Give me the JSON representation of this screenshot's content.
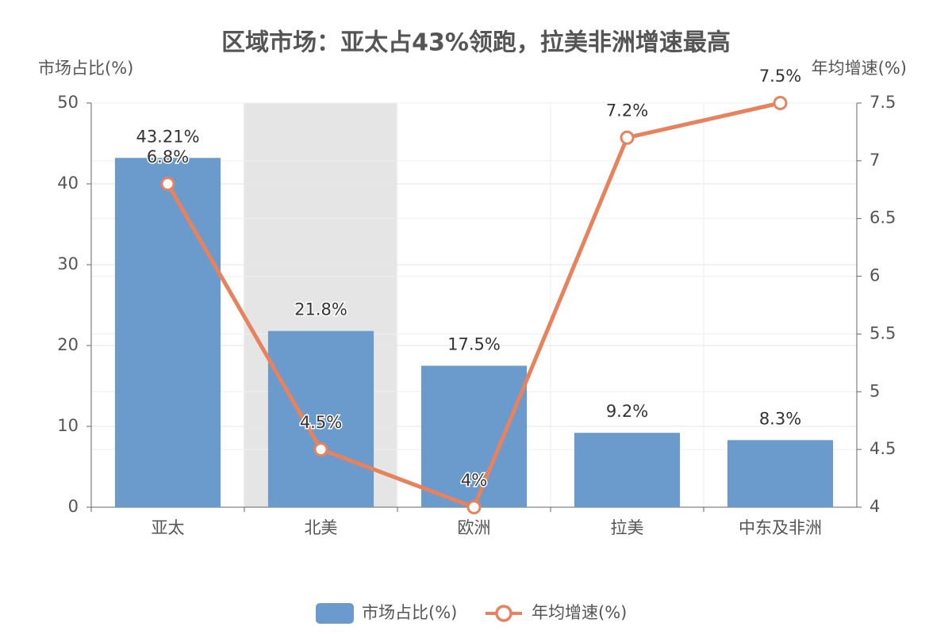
{
  "chart_data": {
    "type": "bar",
    "title": "区域市场：亚太占43%领跑，拉美非洲增速最高",
    "y_axis_label": "市场占比(%)",
    "y2_axis_label": "年均增速(%)",
    "categories": [
      "亚太",
      "北美",
      "欧洲",
      "拉美",
      "中东及非洲"
    ],
    "series": [
      {
        "name": "市场占比(%)",
        "type": "bar",
        "color": "#6b9bcc",
        "values": [
          43.21,
          21.8,
          17.5,
          9.2,
          8.3
        ],
        "value_labels": [
          "43.21%",
          "21.8%",
          "17.5%",
          "9.2%",
          "8.3%"
        ]
      },
      {
        "name": "年均增速(%)",
        "type": "line",
        "axis": "y2",
        "color": "#e8825d",
        "values": [
          6.8,
          4.5,
          4,
          7.2,
          7.5
        ],
        "value_labels": [
          "6.8%",
          "4.5%",
          "4%",
          "7.2%",
          "7.5%"
        ]
      }
    ],
    "ylim": [
      0,
      50
    ],
    "yticks": [
      0,
      10,
      20,
      30,
      40,
      50
    ],
    "y2lim": [
      4,
      7.5
    ],
    "y2ticks": [
      4,
      4.5,
      5,
      5.5,
      6,
      6.5,
      7,
      7.5
    ],
    "grid": true,
    "legend": "bottom"
  }
}
